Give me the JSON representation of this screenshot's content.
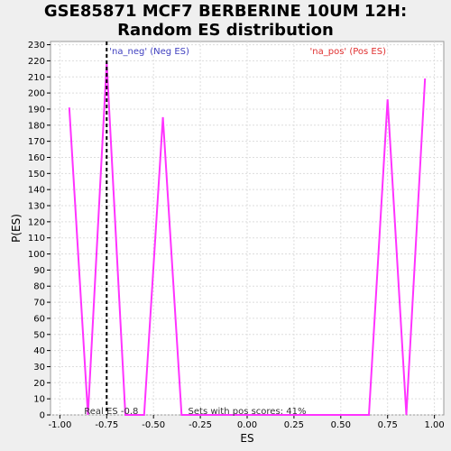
{
  "chart_data": {
    "type": "line",
    "title_line1": "GSE85871 MCF7 BERBERINE 10UM 12H:",
    "title_line2": "Random ES distribution",
    "xlabel": "ES",
    "ylabel": "P(ES)",
    "xlim": [
      -1.05,
      1.05
    ],
    "ylim": [
      0,
      232
    ],
    "x_ticks": [
      "-1.00",
      "-0.75",
      "-0.50",
      "-0.25",
      "0.00",
      "0.25",
      "0.50",
      "0.75",
      "1.00"
    ],
    "x_tick_values": [
      -1.0,
      -0.75,
      -0.5,
      -0.25,
      0.0,
      0.25,
      0.5,
      0.75,
      1.0
    ],
    "y_ticks": [
      0,
      10,
      20,
      30,
      40,
      50,
      60,
      70,
      80,
      90,
      100,
      110,
      120,
      130,
      140,
      150,
      160,
      170,
      180,
      190,
      200,
      210,
      220,
      230
    ],
    "grid": true,
    "series": [
      {
        "color": "#ff33ff",
        "x": [
          -0.95,
          -0.85,
          -0.75,
          -0.65,
          -0.55,
          -0.45,
          -0.35,
          -0.25,
          -0.15,
          -0.05,
          0.05,
          0.15,
          0.25,
          0.35,
          0.45,
          0.55,
          0.65,
          0.75,
          0.85,
          0.95
        ],
        "y": [
          191,
          0,
          219,
          0,
          0,
          185,
          0,
          0,
          0,
          0,
          0,
          0,
          0,
          0,
          0,
          0,
          0,
          196,
          0,
          209
        ]
      }
    ],
    "real_es": -0.75,
    "annotations": {
      "neg_label": "'na_neg' (Neg ES)",
      "pos_label": "'na_pos' (Pos ES)",
      "real_es_label": "Real ES -0.8",
      "sets_label": "Sets with pos scores: 41%"
    },
    "colors": {
      "neg": "#4040c0",
      "pos": "#e03030",
      "line": "#ff33ff",
      "grid": "#dddddd",
      "marker": "#000000"
    }
  }
}
